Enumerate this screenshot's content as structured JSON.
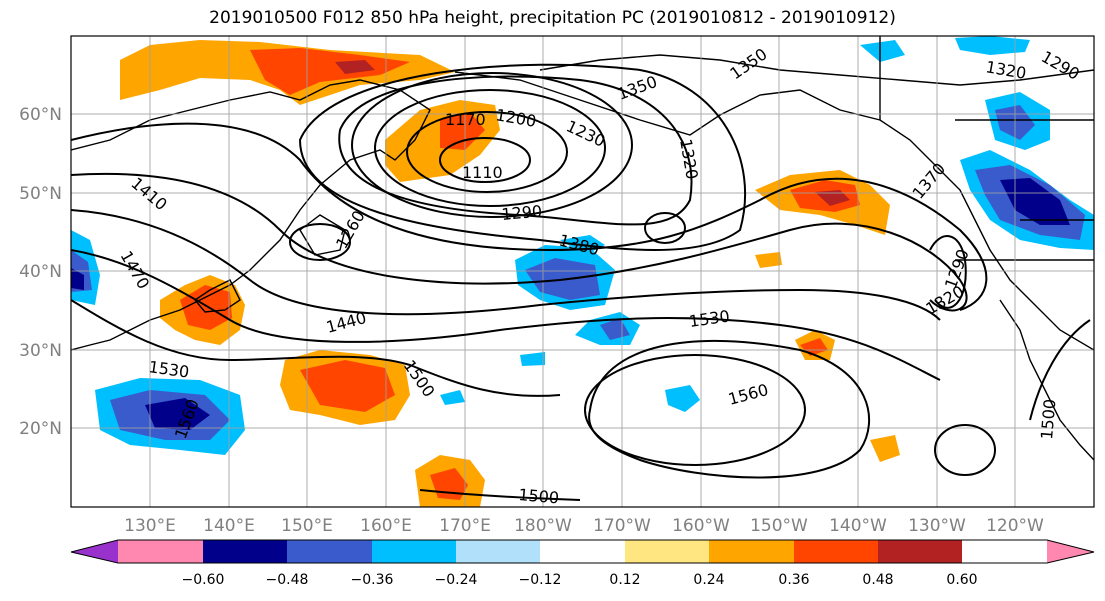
{
  "title": "2019010500 F012 850 hPa height, precipitation PC (2019010812 - 2019010912)",
  "map": {
    "lat_labels": [
      "60°N",
      "50°N",
      "40°N",
      "30°N",
      "20°N"
    ],
    "lon_labels": [
      "130°E",
      "140°E",
      "150°E",
      "160°E",
      "170°E",
      "180°W",
      "170°W",
      "160°W",
      "150°W",
      "140°W",
      "130°W",
      "120°W"
    ],
    "contour_labels": [
      "1350",
      "1320",
      "1290",
      "1350",
      "1170",
      "1200",
      "1230",
      "1320",
      "1110",
      "1290",
      "1410",
      "1260",
      "1380",
      "1470",
      "1440",
      "1530",
      "1320",
      "1290",
      "1530",
      "1500",
      "1560",
      "1560",
      "1500",
      "1500",
      "1370"
    ]
  },
  "colorbar": {
    "colors": [
      "#9932cc",
      "#00008b",
      "#3a5bcc",
      "#00bfff",
      "#b0e0fa",
      "#ffffff",
      "#ffe680",
      "#ffa500",
      "#ff4500",
      "#b22222",
      "#ff88b0"
    ],
    "tick_labels": [
      "−0.60",
      "−0.48",
      "−0.36",
      "−0.24",
      "−0.12",
      "0.12",
      "0.24",
      "0.36",
      "0.48",
      "0.60"
    ]
  }
}
